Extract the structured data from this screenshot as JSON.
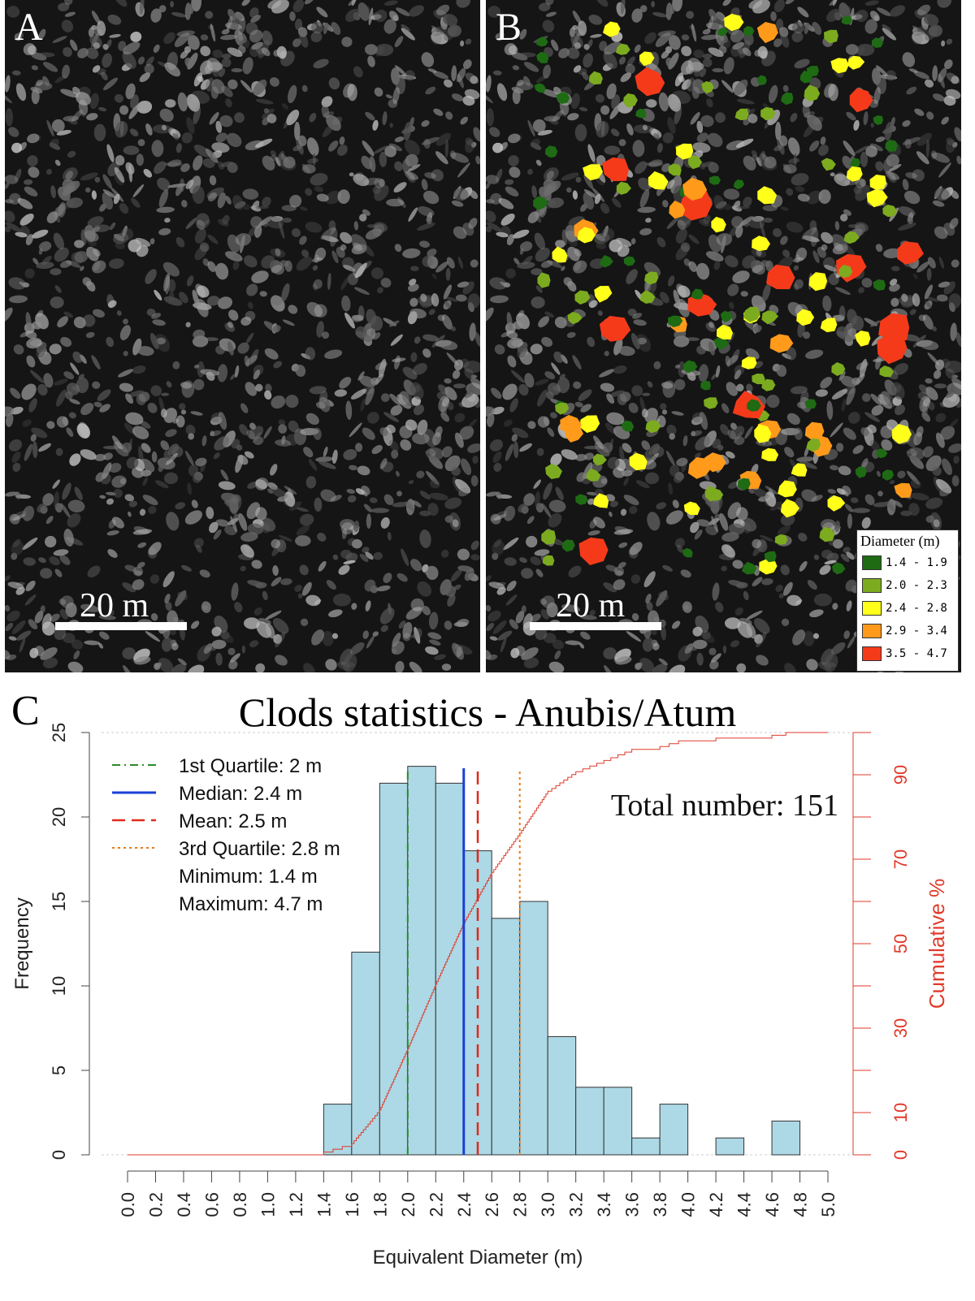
{
  "panel_a": {
    "letter": "A",
    "scale_label": "20 m"
  },
  "panel_b": {
    "letter": "B",
    "scale_label": "20 m",
    "legend": {
      "title": "Diameter (m)",
      "classes": [
        {
          "label": "1.4 - 1.9",
          "color": "#1e6b14"
        },
        {
          "label": "2.0 - 2.3",
          "color": "#7cab1f"
        },
        {
          "label": "2.4 - 2.8",
          "color": "#ffff1a"
        },
        {
          "label": "2.9 - 3.4",
          "color": "#ff9a1a"
        },
        {
          "label": "3.5 - 4.7",
          "color": "#f53a1a"
        }
      ]
    }
  },
  "panel_c": {
    "letter": "C"
  },
  "chart_data": {
    "type": "bar",
    "title": "Clods statistics - Anubis/Atum",
    "xlabel": "Equivalent Diameter (m)",
    "ylabel": "Frequency",
    "y2label": "Cumulative %",
    "xlim": [
      0,
      5
    ],
    "ylim": [
      0,
      25
    ],
    "y2lim": [
      0,
      100
    ],
    "xticks": [
      "0.0",
      "0.2",
      "0.4",
      "0.6",
      "0.8",
      "1.0",
      "1.2",
      "1.4",
      "1.6",
      "1.8",
      "2.0",
      "2.2",
      "2.4",
      "2.6",
      "2.8",
      "3.0",
      "3.2",
      "3.4",
      "3.6",
      "3.8",
      "4.0",
      "4.2",
      "4.4",
      "4.6",
      "4.8",
      "5.0"
    ],
    "yticks": [
      "0",
      "5",
      "10",
      "15",
      "20",
      "25"
    ],
    "y2ticks": [
      "0",
      "10",
      "30",
      "50",
      "70",
      "90"
    ],
    "bins": [
      {
        "start": 1.4,
        "end": 1.6,
        "value": 3
      },
      {
        "start": 1.6,
        "end": 1.8,
        "value": 12
      },
      {
        "start": 1.8,
        "end": 2.0,
        "value": 22
      },
      {
        "start": 2.0,
        "end": 2.2,
        "value": 23
      },
      {
        "start": 2.2,
        "end": 2.4,
        "value": 22
      },
      {
        "start": 2.4,
        "end": 2.6,
        "value": 18
      },
      {
        "start": 2.6,
        "end": 2.8,
        "value": 14
      },
      {
        "start": 2.8,
        "end": 3.0,
        "value": 15
      },
      {
        "start": 3.0,
        "end": 3.2,
        "value": 7
      },
      {
        "start": 3.2,
        "end": 3.4,
        "value": 4
      },
      {
        "start": 3.4,
        "end": 3.6,
        "value": 4
      },
      {
        "start": 3.6,
        "end": 3.8,
        "value": 1
      },
      {
        "start": 3.8,
        "end": 4.0,
        "value": 3
      },
      {
        "start": 4.0,
        "end": 4.2,
        "value": 0
      },
      {
        "start": 4.2,
        "end": 4.4,
        "value": 1
      },
      {
        "start": 4.4,
        "end": 4.6,
        "value": 0
      },
      {
        "start": 4.6,
        "end": 4.8,
        "value": 2
      },
      {
        "start": 4.8,
        "end": 5.0,
        "value": 0
      }
    ],
    "bar_color": "#add8e6",
    "stat_lines": [
      {
        "label": "1st Quartile: 2 m",
        "value": 2.0,
        "color": "#2a8a2a",
        "dash": "10,5,2,5",
        "width": 2
      },
      {
        "label": "Median: 2.4 m",
        "value": 2.4,
        "color": "#1a3fd6",
        "dash": "",
        "width": 3
      },
      {
        "label": "Mean: 2.5 m",
        "value": 2.5,
        "color": "#e02a1a",
        "dash": "16,8",
        "width": 2.5
      },
      {
        "label": "3rd Quartile: 2.8 m",
        "value": 2.8,
        "color": "#e87a1a",
        "dash": "3,4",
        "width": 2
      }
    ],
    "extra_stats": [
      "Minimum: 1.4 m",
      "Maximum: 4.7 m"
    ],
    "total_label": "Total number: 151",
    "cumulative_color": "#e03a2a"
  }
}
